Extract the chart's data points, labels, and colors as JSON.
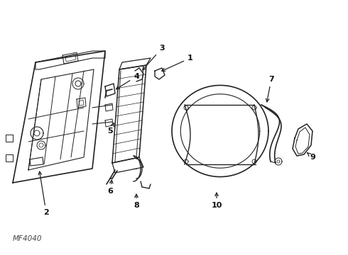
{
  "background_color": "#ffffff",
  "line_color": "#222222",
  "text_color": "#111111",
  "figsize": [
    4.9,
    3.6
  ],
  "dpi": 100,
  "watermark": "MF4040"
}
